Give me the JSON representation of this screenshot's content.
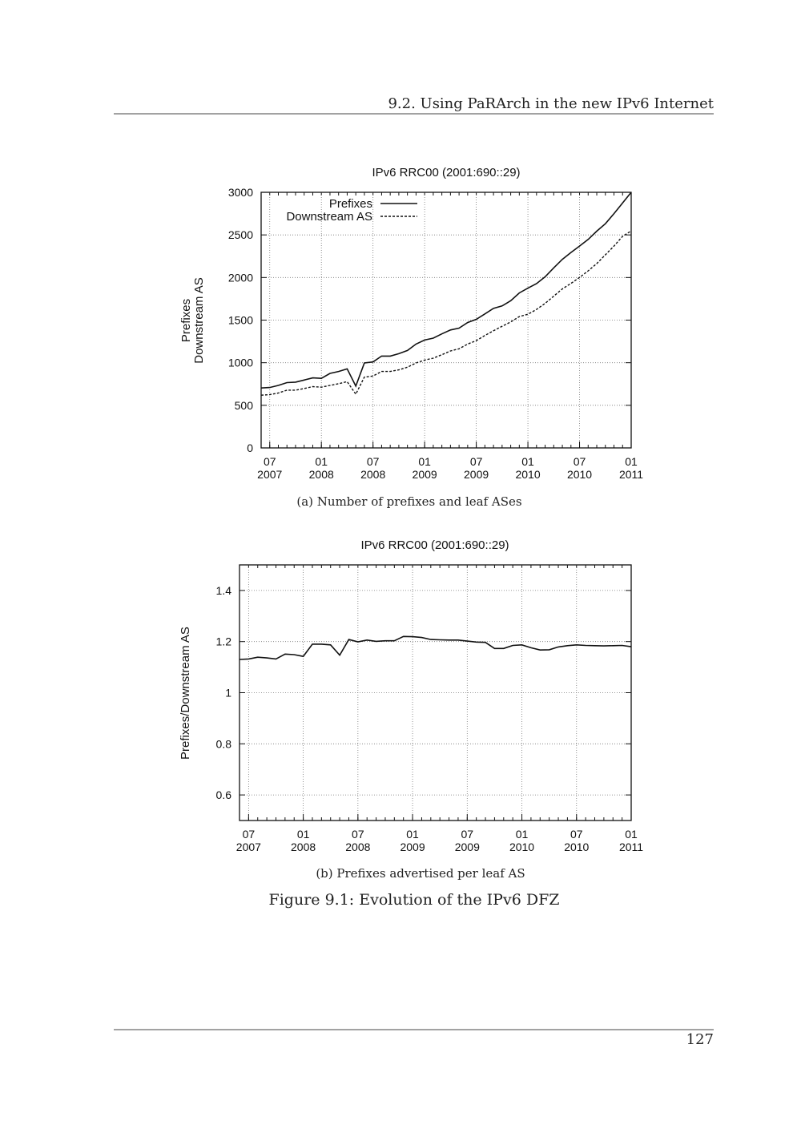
{
  "header": {
    "section": "9.2.   Using PaRArch in the new IPv6 Internet"
  },
  "footer": {
    "page_number": "127"
  },
  "figure": {
    "caption": "Figure 9.1: Evolution of the IPv6 DFZ",
    "subcaption_a": "(a) Number of prefixes and leaf ASes",
    "subcaption_b": "(b) Prefixes advertised per leaf AS"
  },
  "chart_data": [
    {
      "type": "line",
      "title": "IPv6 RRC00 (2001:690::29)",
      "xlabel": "",
      "ylabel": [
        "Prefixes",
        "Downstream AS"
      ],
      "x": [
        "2007-06",
        "2007-07",
        "2007-08",
        "2007-09",
        "2007-10",
        "2007-11",
        "2007-12",
        "2008-01",
        "2008-02",
        "2008-03",
        "2008-04",
        "2008-05",
        "2008-06",
        "2008-07",
        "2008-08",
        "2008-09",
        "2008-10",
        "2008-11",
        "2008-12",
        "2009-01",
        "2009-02",
        "2009-03",
        "2009-04",
        "2009-05",
        "2009-06",
        "2009-07",
        "2009-08",
        "2009-09",
        "2009-10",
        "2009-11",
        "2009-12",
        "2010-01",
        "2010-02",
        "2010-03",
        "2010-04",
        "2010-05",
        "2010-06",
        "2010-07",
        "2010-08",
        "2010-09",
        "2010-10",
        "2010-11",
        "2010-12",
        "2011-01"
      ],
      "xticks": [
        {
          "month": "2007-07",
          "l1": "07",
          "l2": "2007"
        },
        {
          "month": "2008-01",
          "l1": "01",
          "l2": "2008"
        },
        {
          "month": "2008-07",
          "l1": "07",
          "l2": "2008"
        },
        {
          "month": "2009-01",
          "l1": "01",
          "l2": "2009"
        },
        {
          "month": "2009-07",
          "l1": "07",
          "l2": "2009"
        },
        {
          "month": "2010-01",
          "l1": "01",
          "l2": "2010"
        },
        {
          "month": "2010-07",
          "l1": "07",
          "l2": "2010"
        },
        {
          "month": "2011-01",
          "l1": "01",
          "l2": "2011"
        }
      ],
      "yticks": [
        "0",
        "500",
        "1000",
        "1500",
        "2000",
        "2500",
        "3000"
      ],
      "ylim": [
        0,
        3000
      ],
      "grid": true,
      "legend": "top-left",
      "series": [
        {
          "name": "Prefixes",
          "style": "solid",
          "values": [
            703,
            709,
            734,
            766,
            772,
            797,
            822,
            816,
            875,
            897,
            928,
            725,
            997,
            1009,
            1078,
            1078,
            1106,
            1144,
            1219,
            1266,
            1288,
            1338,
            1384,
            1406,
            1472,
            1509,
            1572,
            1638,
            1666,
            1728,
            1819,
            1875,
            1928,
            2009,
            2113,
            2213,
            2294,
            2369,
            2447,
            2544,
            2631,
            2750,
            2875,
            3000
          ]
        },
        {
          "name": "Downstream AS",
          "style": "dashed",
          "values": [
            619,
            625,
            644,
            678,
            678,
            697,
            719,
            713,
            734,
            753,
            778,
            631,
            831,
            844,
            897,
            897,
            916,
            947,
            997,
            1031,
            1053,
            1094,
            1138,
            1163,
            1219,
            1259,
            1319,
            1375,
            1428,
            1478,
            1541,
            1569,
            1625,
            1697,
            1781,
            1866,
            1931,
            2000,
            2078,
            2163,
            2266,
            2369,
            2484,
            2547
          ]
        }
      ]
    },
    {
      "type": "line",
      "title": "IPv6 RRC00 (2001:690::29)",
      "xlabel": "",
      "ylabel": [
        "Prefixes/Downstream AS"
      ],
      "x": [
        "2007-06",
        "2007-07",
        "2007-08",
        "2007-09",
        "2007-10",
        "2007-11",
        "2007-12",
        "2008-01",
        "2008-02",
        "2008-03",
        "2008-04",
        "2008-05",
        "2008-06",
        "2008-07",
        "2008-08",
        "2008-09",
        "2008-10",
        "2008-11",
        "2008-12",
        "2009-01",
        "2009-02",
        "2009-03",
        "2009-04",
        "2009-05",
        "2009-06",
        "2009-07",
        "2009-08",
        "2009-09",
        "2009-10",
        "2009-11",
        "2009-12",
        "2010-01",
        "2010-02",
        "2010-03",
        "2010-04",
        "2010-05",
        "2010-06",
        "2010-07",
        "2010-08",
        "2010-09",
        "2010-10",
        "2010-11",
        "2010-12",
        "2011-01"
      ],
      "xticks": [
        {
          "month": "2007-07",
          "l1": "07",
          "l2": "2007"
        },
        {
          "month": "2008-01",
          "l1": "01",
          "l2": "2008"
        },
        {
          "month": "2008-07",
          "l1": "07",
          "l2": "2008"
        },
        {
          "month": "2009-01",
          "l1": "01",
          "l2": "2009"
        },
        {
          "month": "2009-07",
          "l1": "07",
          "l2": "2009"
        },
        {
          "month": "2010-01",
          "l1": "01",
          "l2": "2010"
        },
        {
          "month": "2010-07",
          "l1": "07",
          "l2": "2010"
        },
        {
          "month": "2011-01",
          "l1": "01",
          "l2": "2011"
        }
      ],
      "yticks": [
        "0.6",
        "0.8",
        "1",
        "1.2",
        "1.4"
      ],
      "ylim": [
        0.5,
        1.5
      ],
      "grid": true,
      "legend": "none",
      "series": [
        {
          "name": "Prefixes/Downstream AS",
          "style": "solid",
          "values": [
            1.13,
            1.132,
            1.139,
            1.136,
            1.132,
            1.151,
            1.149,
            1.142,
            1.19,
            1.19,
            1.187,
            1.147,
            1.208,
            1.199,
            1.206,
            1.201,
            1.203,
            1.203,
            1.22,
            1.219,
            1.216,
            1.208,
            1.207,
            1.206,
            1.206,
            1.202,
            1.198,
            1.197,
            1.173,
            1.173,
            1.185,
            1.187,
            1.176,
            1.167,
            1.168,
            1.179,
            1.184,
            1.187,
            1.185,
            1.184,
            1.183,
            1.184,
            1.185,
            1.18
          ]
        }
      ]
    }
  ]
}
